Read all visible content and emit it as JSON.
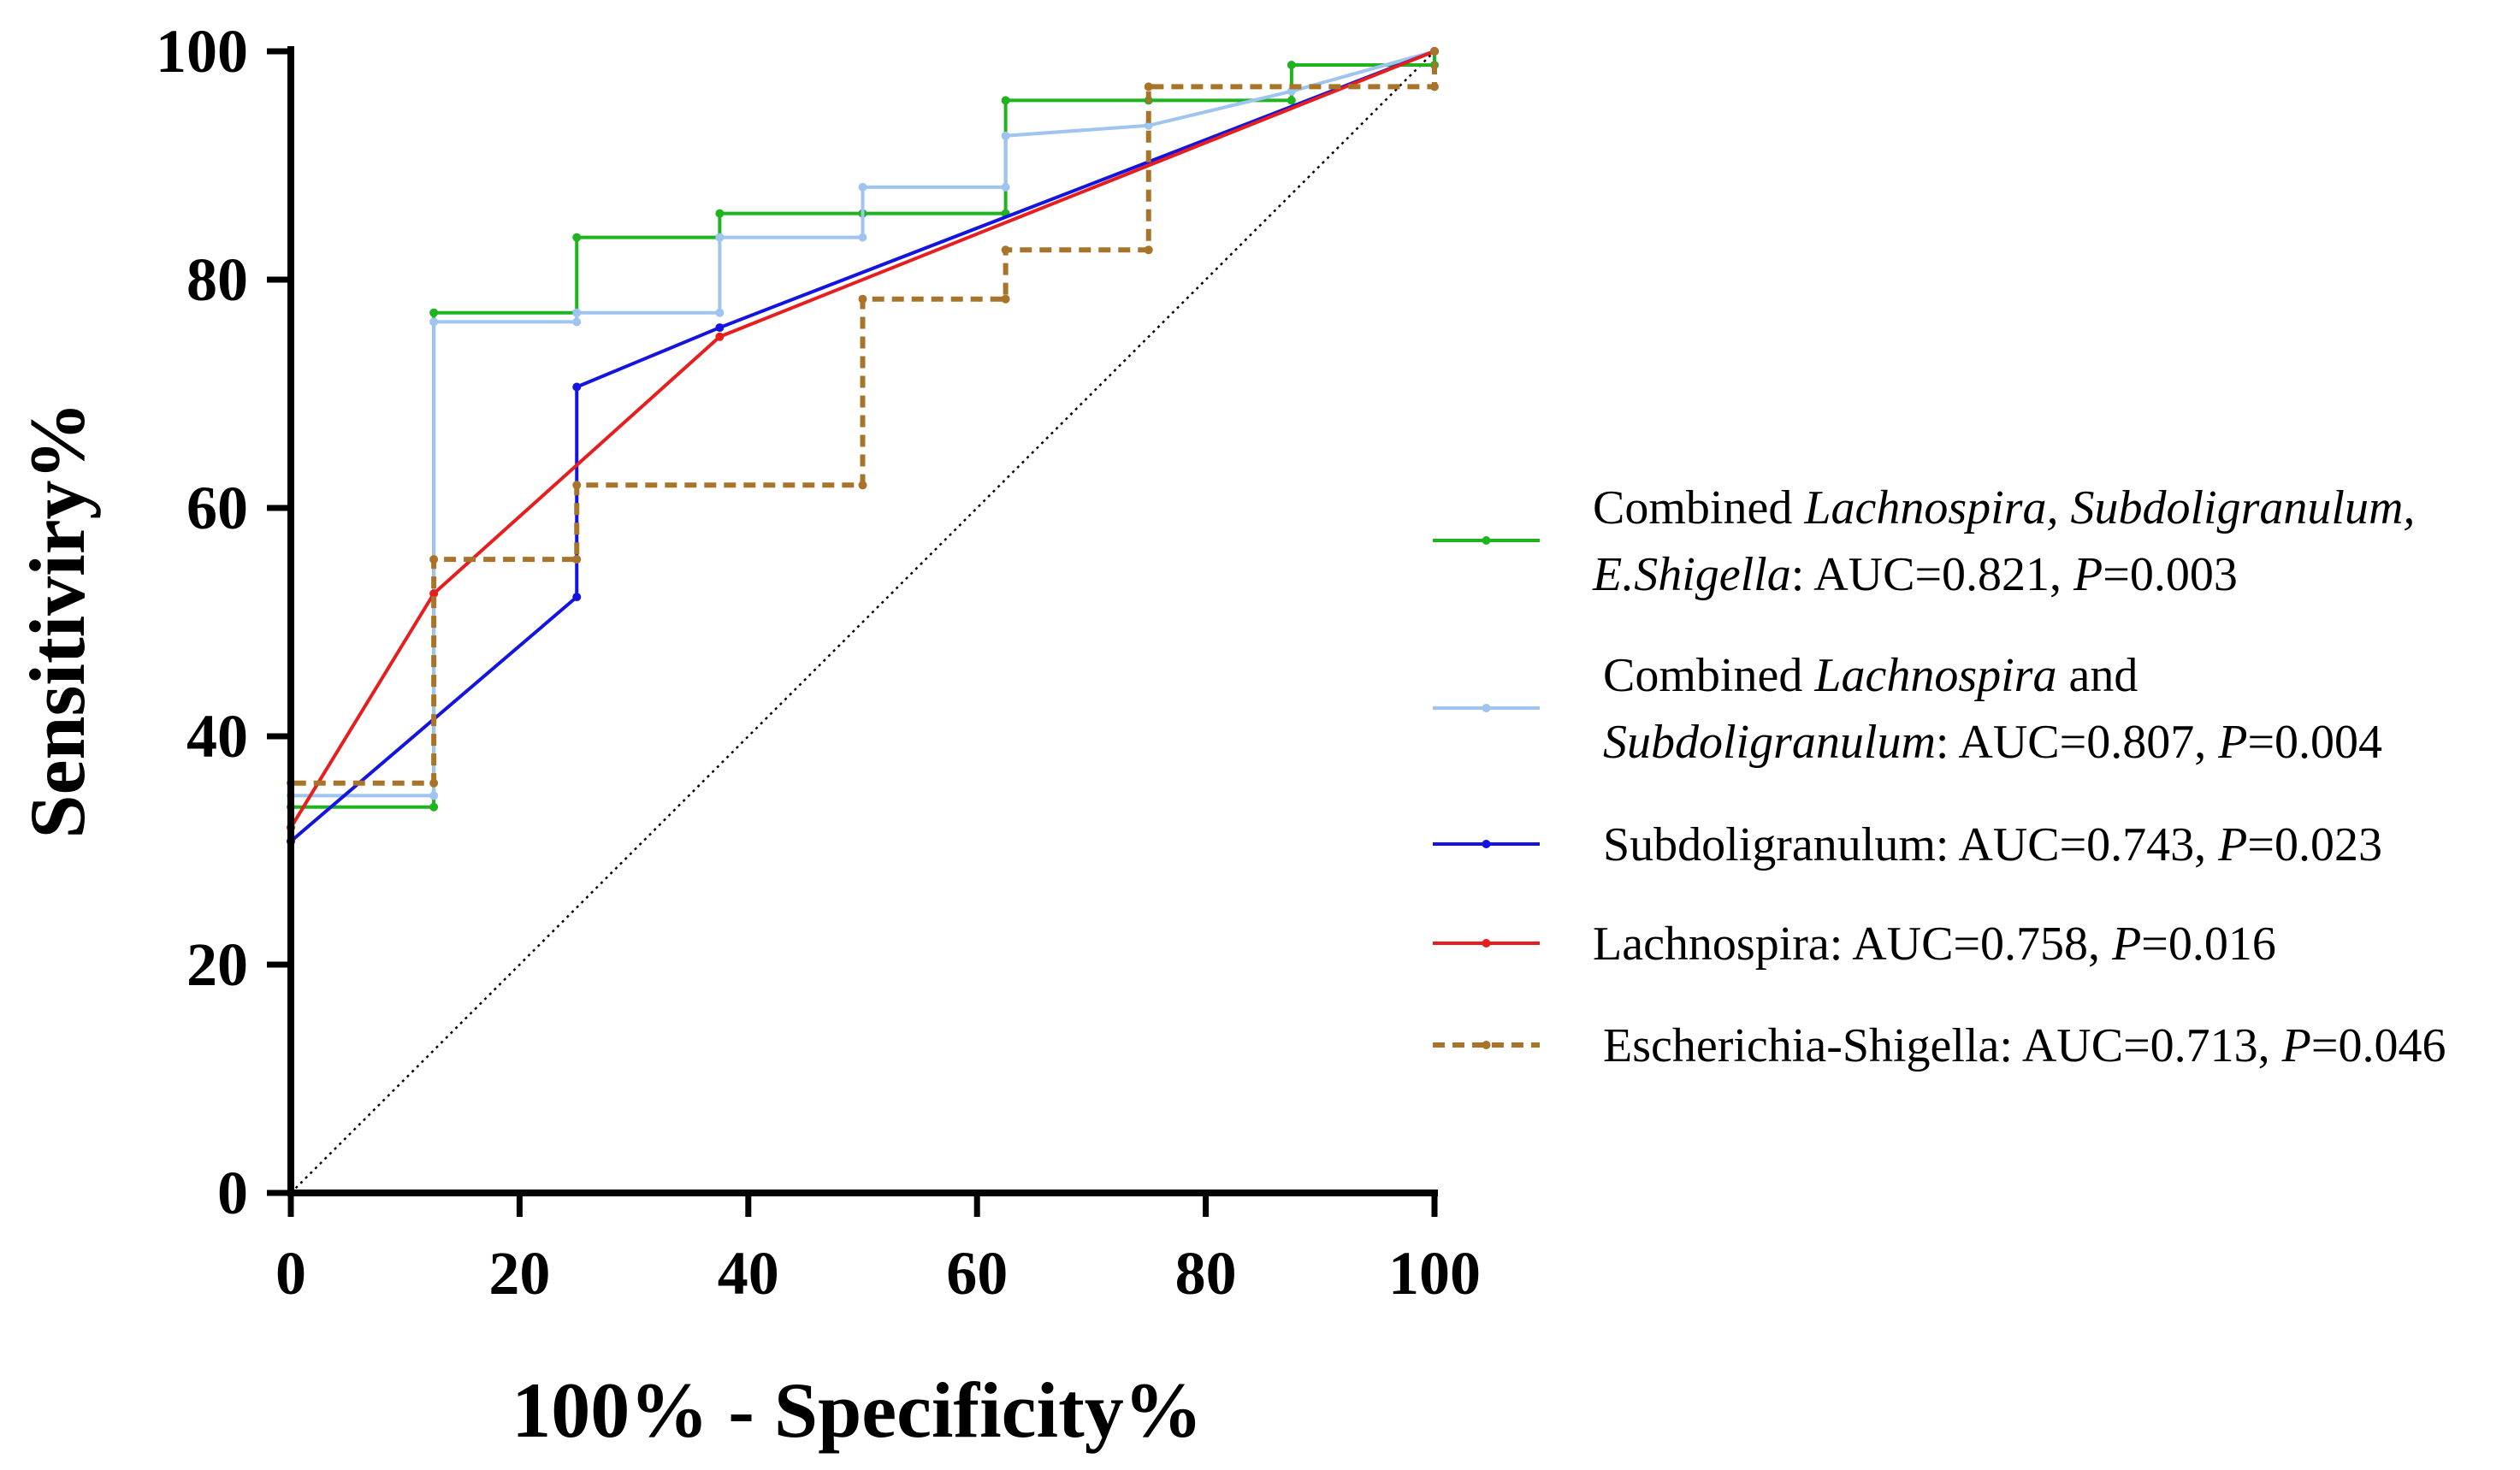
{
  "chart_data": {
    "type": "line",
    "xlabel": "100% - Specificity%",
    "ylabel": "Sensitiviry%",
    "xlim": [
      0,
      100
    ],
    "ylim": [
      0,
      100
    ],
    "x_ticks": [
      "0",
      "20",
      "40",
      "60",
      "80",
      "100"
    ],
    "y_ticks": [
      "0",
      "20",
      "40",
      "60",
      "80",
      "100"
    ],
    "grid": false,
    "legend_position": "right",
    "reference_line": {
      "x": [
        0,
        100
      ],
      "y": [
        0,
        100
      ],
      "style": "dotted",
      "color": "#000000"
    },
    "series": [
      {
        "color": "#1fb31f",
        "style": "step-solid",
        "legend_lines": [
          [
            {
              "t": "Combined ",
              "i": false
            },
            {
              "t": "Lachnospira, Subdoligranulum,",
              "i": true
            }
          ],
          [
            {
              "t": "E.Shigella",
              "i": true
            },
            {
              "t": ": AUC=0.821, ",
              "i": false
            },
            {
              "t": "P",
              "i": true
            },
            {
              "t": "=0.003",
              "i": false
            }
          ]
        ],
        "x": [
          0,
          0,
          12.5,
          12.5,
          25,
          25,
          37.5,
          37.5,
          50,
          50,
          62.5,
          62.5,
          75,
          87.5,
          87.5,
          100,
          100
        ],
        "y": [
          0,
          33.8,
          33.8,
          77.1,
          77.1,
          83.7,
          83.7,
          85.8,
          85.8,
          85.8,
          85.8,
          95.7,
          95.7,
          95.7,
          98.8,
          98.8,
          100
        ]
      },
      {
        "color": "#9ec4ef",
        "style": "step-solid",
        "legend_lines": [
          [
            {
              "t": "Combined ",
              "i": false
            },
            {
              "t": "Lachnospira",
              "i": true
            },
            {
              "t": " and",
              "i": false
            }
          ],
          [
            {
              "t": "Subdoligranulum",
              "i": true
            },
            {
              "t": ": AUC=0.807, ",
              "i": false
            },
            {
              "t": "P",
              "i": true
            },
            {
              "t": "=0.004",
              "i": false
            }
          ]
        ],
        "x": [
          0,
          0,
          12.5,
          12.5,
          25,
          25,
          37.5,
          37.5,
          50,
          50,
          62.5,
          62.5,
          75,
          87.5,
          100
        ],
        "y": [
          0,
          34.8,
          34.8,
          76.3,
          76.3,
          77.1,
          77.1,
          83.7,
          83.7,
          88.1,
          88.1,
          92.6,
          93.5,
          96.5,
          100
        ]
      },
      {
        "color": "#1414e0",
        "style": "solid",
        "legend_lines": [
          [
            {
              "t": "Subdoligranulum: AUC=0.743, ",
              "i": false
            },
            {
              "t": "P",
              "i": true
            },
            {
              "t": "=0.023",
              "i": false
            }
          ]
        ],
        "x": [
          0,
          0,
          25,
          25,
          37.5,
          100
        ],
        "y": [
          0,
          30.8,
          52.2,
          70.6,
          75.8,
          100
        ]
      },
      {
        "color": "#e61e1e",
        "style": "solid",
        "legend_lines": [
          [
            {
              "t": "Lachnospira: AUC=0.758, ",
              "i": false
            },
            {
              "t": "P",
              "i": true
            },
            {
              "t": "=0.016",
              "i": false
            }
          ]
        ],
        "x": [
          0,
          0,
          12.5,
          37.5,
          100
        ],
        "y": [
          0,
          32,
          52.5,
          75,
          100
        ]
      },
      {
        "color": "#a8742a",
        "style": "step-dashed",
        "legend_lines": [
          [
            {
              "t": "Escherichia-Shigella: AUC=0.713, ",
              "i": false
            },
            {
              "t": "P",
              "i": true
            },
            {
              "t": "=0.046",
              "i": false
            }
          ]
        ],
        "x": [
          0,
          0,
          12.5,
          12.5,
          25,
          25,
          50,
          50,
          62.5,
          62.5,
          75,
          75,
          100,
          100
        ],
        "y": [
          0,
          35.9,
          35.9,
          55.5,
          55.5,
          62,
          62,
          78.3,
          78.3,
          82.6,
          82.6,
          96.9,
          96.9,
          100
        ]
      }
    ]
  }
}
